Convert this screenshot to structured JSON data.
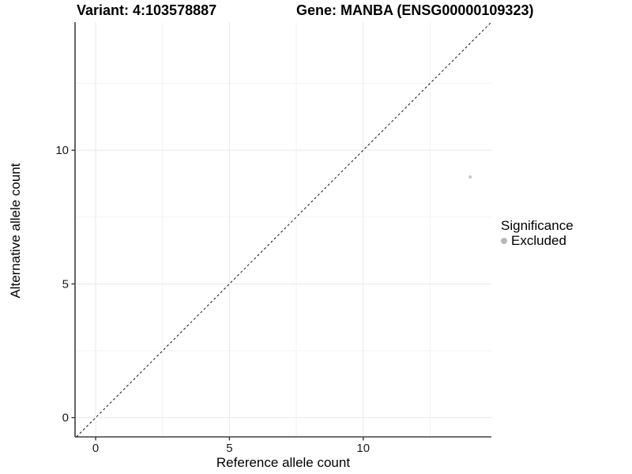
{
  "header": {
    "variant_title": "Variant: 4:103578887",
    "gene_title": "Gene: MANBA (ENSG00000109323)"
  },
  "chart_data": {
    "type": "scatter",
    "title": "",
    "xlabel": "Reference allele count",
    "ylabel": "Alternative allele count",
    "xlim": [
      -0.77,
      14.79
    ],
    "ylim": [
      -0.72,
      14.79
    ],
    "x_major_ticks": [
      0,
      5,
      10
    ],
    "y_major_ticks": [
      0,
      5,
      10
    ],
    "x_minor_ticks": [
      2.5,
      7.5,
      12.5
    ],
    "y_minor_ticks": [
      2.5,
      7.5,
      12.5
    ],
    "grid": "major and minor gridlines on, panel background white, axis lines on left and bottom only",
    "points": [
      {
        "x": 14,
        "y": 9,
        "series": "Excluded",
        "color": "#c6c6c6",
        "radius": 2
      }
    ],
    "reference_line": {
      "type": "identity y=x",
      "style": "dashed",
      "color": "#111111"
    },
    "legend": {
      "title": "Significance",
      "position": "right",
      "items": [
        {
          "label": "Excluded",
          "color": "#b8b8b8"
        }
      ]
    },
    "colors": {
      "axis_line": "#404040",
      "tick_mark": "#333333",
      "tick_label": "#1a1a1a",
      "grid_major": "#e8e8e8",
      "grid_minor": "#f3f3f3",
      "background": "#ffffff"
    }
  }
}
